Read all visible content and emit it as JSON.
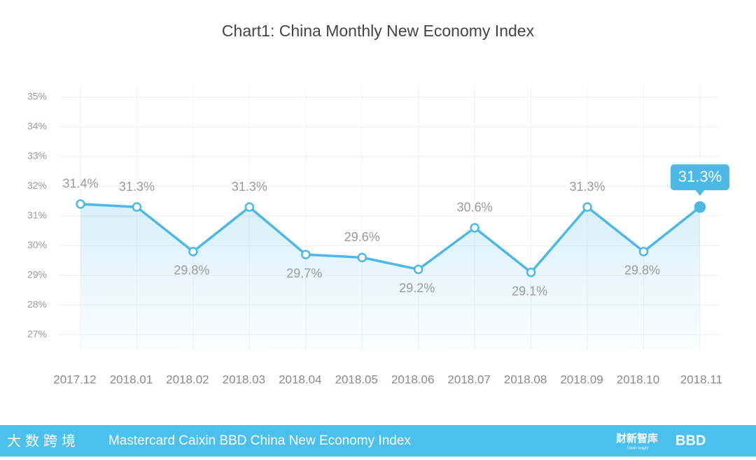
{
  "chart_data": {
    "type": "line",
    "title": "Chart1: China Monthly New Economy Index",
    "categories": [
      "2017.12",
      "2018.01",
      "2018.02",
      "2018.03",
      "2018.04",
      "2018.05",
      "2018.06",
      "2018.07",
      "2018.08",
      "2018.09",
      "2018.10",
      "2018.11"
    ],
    "series": [
      {
        "name": "China Monthly New Economy Index",
        "color": "#4bb8e6",
        "values": [
          31.4,
          31.3,
          29.8,
          31.3,
          29.7,
          29.6,
          29.2,
          30.6,
          29.1,
          31.3,
          29.8,
          31.3
        ],
        "value_labels": [
          "31.4%",
          "31.3%",
          "29.8%",
          "31.3%",
          "29.7%",
          "29.6%",
          "29.2%",
          "30.6%",
          "29.1%",
          "31.3%",
          "29.8%",
          "31.3%"
        ]
      }
    ],
    "ylim": [
      26.5,
      35.4
    ],
    "yticks": [
      {
        "value": 27,
        "label": "27%"
      },
      {
        "value": 28,
        "label": "28%"
      },
      {
        "value": 29,
        "label": "29%"
      },
      {
        "value": 30,
        "label": "30%"
      },
      {
        "value": 31,
        "label": "31%"
      },
      {
        "value": 32,
        "label": "32%"
      },
      {
        "value": 33,
        "label": "33%"
      },
      {
        "value": 34,
        "label": "34%"
      },
      {
        "value": 35,
        "label": "35%"
      }
    ],
    "grid": true
  },
  "footer": {
    "title": "Mastercard Caixin BBD China New Economy Index",
    "left_logo": "大数跨境",
    "right_logo": "财新智库",
    "right_logo_sub": "Caixin Insight",
    "brand": "BBD"
  }
}
